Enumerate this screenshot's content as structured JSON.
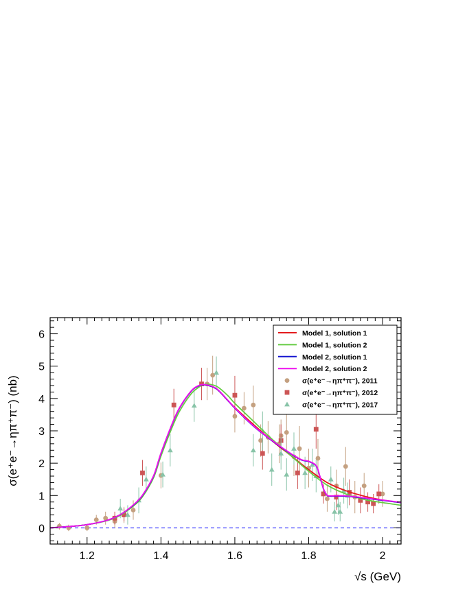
{
  "chart_data": {
    "type": "line",
    "title": "",
    "xlabel": "√s (GeV)",
    "ylabel": "σ(e⁺e⁻→ηπ⁺π⁻) (nb)",
    "xlim": [
      1.1,
      2.05
    ],
    "ylim": [
      -0.5,
      6.5
    ],
    "xticks": [
      1.2,
      1.4,
      1.6,
      1.8,
      2
    ],
    "xtick_labels": [
      "1.2",
      "1.4",
      "1.6",
      "1.8",
      "2"
    ],
    "yticks": [
      0,
      1,
      2,
      3,
      4,
      5,
      6
    ],
    "ytick_labels": [
      "0",
      "1",
      "2",
      "3",
      "4",
      "5",
      "6"
    ],
    "legend_position": "top-right",
    "baseline": {
      "y": 0,
      "color": "#5555ff",
      "style": "dashed"
    },
    "series": [
      {
        "name": "Model 1, solution 1",
        "kind": "line",
        "color": "#e41a1c",
        "x": [
          1.1,
          1.15,
          1.2,
          1.25,
          1.28,
          1.3,
          1.33,
          1.35,
          1.38,
          1.4,
          1.43,
          1.45,
          1.48,
          1.5,
          1.52,
          1.55,
          1.58,
          1.6,
          1.65,
          1.7,
          1.75,
          1.8,
          1.85,
          1.9,
          1.95,
          2.0,
          2.05
        ],
        "y": [
          0.0,
          0.04,
          0.1,
          0.22,
          0.35,
          0.48,
          0.75,
          1.0,
          1.6,
          2.3,
          3.2,
          3.7,
          4.2,
          4.38,
          4.42,
          4.3,
          3.95,
          3.72,
          3.2,
          2.7,
          2.25,
          1.8,
          1.4,
          1.15,
          0.98,
          0.86,
          0.78
        ]
      },
      {
        "name": "Model 1, solution 2",
        "kind": "line",
        "color": "#66cc44",
        "x": [
          1.1,
          1.15,
          1.2,
          1.25,
          1.28,
          1.3,
          1.33,
          1.35,
          1.38,
          1.4,
          1.43,
          1.45,
          1.48,
          1.5,
          1.52,
          1.55,
          1.58,
          1.6,
          1.65,
          1.7,
          1.75,
          1.8,
          1.85,
          1.9,
          1.95,
          2.0,
          2.05
        ],
        "y": [
          0.0,
          0.04,
          0.1,
          0.21,
          0.33,
          0.46,
          0.72,
          0.96,
          1.55,
          2.22,
          3.1,
          3.6,
          4.12,
          4.33,
          4.44,
          4.38,
          4.1,
          3.85,
          3.3,
          2.75,
          2.25,
          1.75,
          1.32,
          1.05,
          0.88,
          0.78,
          0.7
        ]
      },
      {
        "name": "Model 2, solution 1",
        "kind": "line",
        "color": "#1515d0",
        "x": [
          1.1,
          1.15,
          1.2,
          1.25,
          1.28,
          1.3,
          1.33,
          1.35,
          1.38,
          1.4,
          1.43,
          1.45,
          1.48,
          1.5,
          1.52,
          1.55,
          1.58,
          1.6,
          1.65,
          1.7,
          1.75,
          1.78,
          1.8,
          1.82,
          1.83,
          1.84,
          1.85,
          1.86,
          1.87,
          1.9,
          1.95,
          2.0,
          2.05
        ],
        "y": [
          0.0,
          0.04,
          0.1,
          0.22,
          0.35,
          0.48,
          0.75,
          1.0,
          1.6,
          2.3,
          3.2,
          3.7,
          4.2,
          4.38,
          4.42,
          4.3,
          3.95,
          3.7,
          3.15,
          2.7,
          2.3,
          2.1,
          2.05,
          1.92,
          1.6,
          1.2,
          1.0,
          0.98,
          0.98,
          0.98,
          0.92,
          0.85,
          0.78
        ]
      },
      {
        "name": "Model 2, solution 2",
        "kind": "line",
        "color": "#ee11ee",
        "x": [
          1.1,
          1.15,
          1.2,
          1.25,
          1.28,
          1.3,
          1.33,
          1.35,
          1.38,
          1.4,
          1.43,
          1.45,
          1.48,
          1.5,
          1.52,
          1.55,
          1.58,
          1.6,
          1.65,
          1.7,
          1.75,
          1.78,
          1.8,
          1.82,
          1.83,
          1.84,
          1.85,
          1.86,
          1.87,
          1.9,
          1.95,
          2.0,
          2.05
        ],
        "y": [
          0.0,
          0.04,
          0.1,
          0.22,
          0.35,
          0.48,
          0.76,
          1.01,
          1.61,
          2.31,
          3.21,
          3.71,
          4.21,
          4.39,
          4.43,
          4.31,
          3.96,
          3.71,
          3.16,
          2.71,
          2.31,
          2.11,
          2.06,
          1.93,
          1.61,
          1.21,
          1.01,
          0.99,
          0.99,
          0.99,
          0.93,
          0.86,
          0.79
        ]
      },
      {
        "name": "σ(e⁺e⁻→ηπ⁺π⁻), 2011",
        "kind": "points",
        "marker": "circle",
        "color": "#c4a080",
        "x": [
          1.125,
          1.15,
          1.2,
          1.225,
          1.25,
          1.275,
          1.3,
          1.325,
          1.4,
          1.525,
          1.54,
          1.6,
          1.625,
          1.65,
          1.67,
          1.69,
          1.72,
          1.725,
          1.74,
          1.76,
          1.775,
          1.8,
          1.825,
          1.85,
          1.875,
          1.9,
          1.925,
          1.95,
          2.0
        ],
        "y": [
          0.05,
          0.0,
          0.0,
          0.25,
          0.3,
          0.2,
          0.4,
          0.55,
          1.62,
          4.45,
          4.72,
          3.45,
          3.7,
          3.8,
          2.7,
          2.8,
          2.6,
          2.85,
          2.95,
          2.2,
          2.45,
          1.85,
          2.15,
          0.9,
          1.3,
          1.9,
          0.95,
          1.3,
          1.05
        ],
        "err": [
          0.1,
          0.1,
          0.1,
          0.15,
          0.2,
          0.2,
          0.25,
          0.3,
          0.4,
          0.5,
          0.6,
          0.5,
          0.5,
          0.6,
          0.5,
          0.5,
          0.6,
          0.5,
          0.6,
          0.6,
          0.7,
          0.6,
          0.6,
          0.4,
          0.5,
          0.6,
          0.5,
          0.4,
          0.4
        ]
      },
      {
        "name": "σ(e⁺e⁻→ηπ⁺π⁻), 2012",
        "kind": "points",
        "marker": "square",
        "color": "#cc5555",
        "x": [
          1.275,
          1.3,
          1.35,
          1.435,
          1.51,
          1.6,
          1.675,
          1.725,
          1.77,
          1.82,
          1.84,
          1.875,
          1.91,
          1.94,
          1.96,
          1.975,
          1.99
        ],
        "y": [
          0.3,
          0.4,
          1.7,
          3.8,
          4.45,
          4.1,
          2.3,
          2.7,
          1.7,
          3.05,
          1.05,
          0.95,
          1.1,
          0.85,
          0.8,
          0.75,
          1.05
        ],
        "err": [
          0.2,
          0.2,
          0.4,
          0.5,
          0.5,
          0.6,
          0.5,
          0.5,
          0.5,
          0.6,
          0.3,
          0.4,
          0.4,
          0.4,
          0.3,
          0.3,
          0.3
        ]
      },
      {
        "name": "σ(e⁺e⁻→ηπ⁺π⁻), 2017",
        "kind": "points",
        "marker": "triangle",
        "color": "#88c4a8",
        "x": [
          1.29,
          1.31,
          1.34,
          1.36,
          1.405,
          1.425,
          1.49,
          1.55,
          1.65,
          1.675,
          1.7,
          1.725,
          1.74,
          1.76,
          1.79,
          1.81,
          1.82,
          1.86,
          1.87,
          1.88,
          1.885,
          1.895,
          1.905
        ],
        "y": [
          0.6,
          0.4,
          0.85,
          1.5,
          1.65,
          2.4,
          3.78,
          4.8,
          2.4,
          3.0,
          1.8,
          2.3,
          1.65,
          2.45,
          1.7,
          1.95,
          1.6,
          1.5,
          0.5,
          0.7,
          0.5,
          1.15,
          1.0
        ],
        "err": [
          0.3,
          0.3,
          0.4,
          0.4,
          0.4,
          0.5,
          0.5,
          0.5,
          0.5,
          0.6,
          0.5,
          0.5,
          0.5,
          0.5,
          0.5,
          0.5,
          0.5,
          0.4,
          0.3,
          0.3,
          0.3,
          0.4,
          0.4
        ]
      }
    ]
  }
}
